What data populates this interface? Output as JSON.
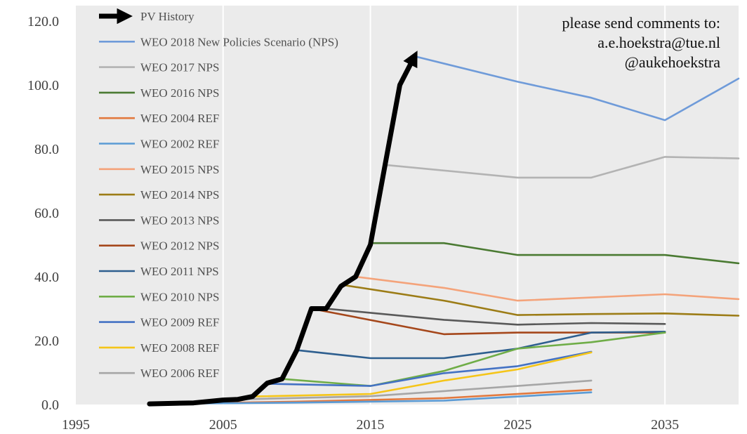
{
  "chart_data": {
    "type": "line",
    "xlim": [
      1995,
      2040
    ],
    "ylim": [
      0,
      120
    ],
    "x_ticks": [
      "1995",
      "2005",
      "2015",
      "2025",
      "2035"
    ],
    "x_tick_values": [
      1995,
      2005,
      2015,
      2025,
      2035
    ],
    "y_ticks": [
      "0.0",
      "20.0",
      "40.0",
      "60.0",
      "80.0",
      "100.0",
      "120.0"
    ],
    "y_tick_values": [
      0,
      20,
      40,
      60,
      80,
      100,
      120
    ],
    "grid": "vertical",
    "background": "#ebebeb",
    "legend_position": "top-left",
    "annotation": [
      "please send comments to:",
      "a.e.hoekstra@tue.nl",
      "@aukehoekstra"
    ],
    "series": [
      {
        "name": "PV History",
        "color": "#000000",
        "style": "arrow",
        "points": [
          [
            2000,
            0.2
          ],
          [
            2003,
            0.5
          ],
          [
            2005,
            1.4
          ],
          [
            2006,
            1.6
          ],
          [
            2007,
            2.5
          ],
          [
            2008,
            6.7
          ],
          [
            2009,
            8
          ],
          [
            2010,
            17
          ],
          [
            2011,
            30
          ],
          [
            2012,
            30
          ],
          [
            2013,
            37
          ],
          [
            2014,
            40
          ],
          [
            2015,
            50
          ],
          [
            2016,
            75
          ],
          [
            2017,
            100
          ],
          [
            2018,
            109
          ]
        ]
      },
      {
        "name": "WEO 2018 New Policies Scenario (NPS)",
        "color": "#6f9bd9",
        "points": [
          [
            2018,
            109
          ],
          [
            2025,
            101
          ],
          [
            2030,
            96
          ],
          [
            2035,
            89
          ],
          [
            2040,
            102
          ]
        ]
      },
      {
        "name": "WEO 2017 NPS",
        "color": "#b3b3b3",
        "points": [
          [
            2016,
            75
          ],
          [
            2025,
            71
          ],
          [
            2030,
            71
          ],
          [
            2035,
            77.5
          ],
          [
            2040,
            77
          ]
        ]
      },
      {
        "name": "WEO 2016 NPS",
        "color": "#4a7a32",
        "points": [
          [
            2015,
            50.5
          ],
          [
            2020,
            50.5
          ],
          [
            2025,
            46.8
          ],
          [
            2030,
            46.8
          ],
          [
            2035,
            46.8
          ],
          [
            2040,
            44.2
          ]
        ]
      },
      {
        "name": "WEO 2004 REF",
        "color": "#e2783d",
        "points": [
          [
            2002,
            0.3
          ],
          [
            2010,
            0.9
          ],
          [
            2020,
            2
          ],
          [
            2030,
            4.6
          ]
        ]
      },
      {
        "name": "WEO 2002 REF",
        "color": "#5b9bd5",
        "points": [
          [
            2000,
            0.2
          ],
          [
            2010,
            0.6
          ],
          [
            2020,
            1.2
          ],
          [
            2030,
            3.8
          ]
        ]
      },
      {
        "name": "WEO 2015 NPS",
        "color": "#f4a37a",
        "points": [
          [
            2014,
            40
          ],
          [
            2020,
            36.5
          ],
          [
            2025,
            32.5
          ],
          [
            2030,
            33.5
          ],
          [
            2035,
            34.5
          ],
          [
            2040,
            33
          ]
        ]
      },
      {
        "name": "WEO 2014 NPS",
        "color": "#9c7c16",
        "points": [
          [
            2013,
            37.5
          ],
          [
            2020,
            32.5
          ],
          [
            2025,
            28
          ],
          [
            2030,
            28.3
          ],
          [
            2035,
            28.5
          ],
          [
            2040,
            27.8
          ]
        ]
      },
      {
        "name": "WEO 2013 NPS",
        "color": "#595959",
        "points": [
          [
            2012,
            30
          ],
          [
            2020,
            26.5
          ],
          [
            2025,
            25
          ],
          [
            2030,
            25.5
          ],
          [
            2035,
            25.2
          ]
        ]
      },
      {
        "name": "WEO 2012 NPS",
        "color": "#a5471b",
        "points": [
          [
            2011,
            30
          ],
          [
            2020,
            22
          ],
          [
            2025,
            22.5
          ],
          [
            2030,
            22.5
          ],
          [
            2035,
            22.5
          ]
        ]
      },
      {
        "name": "WEO 2011 NPS",
        "color": "#2e5f8f",
        "points": [
          [
            2010,
            17
          ],
          [
            2015,
            14.5
          ],
          [
            2020,
            14.5
          ],
          [
            2025,
            17.5
          ],
          [
            2030,
            22.5
          ],
          [
            2035,
            22.8
          ]
        ]
      },
      {
        "name": "WEO 2010 NPS",
        "color": "#6fad47",
        "points": [
          [
            2009,
            8
          ],
          [
            2015,
            5.8
          ],
          [
            2020,
            10.5
          ],
          [
            2025,
            17.5
          ],
          [
            2030,
            19.5
          ],
          [
            2035,
            22.5
          ]
        ]
      },
      {
        "name": "WEO 2009 REF",
        "color": "#4472c4",
        "points": [
          [
            2008,
            6.5
          ],
          [
            2015,
            5.8
          ],
          [
            2020,
            9.8
          ],
          [
            2025,
            12
          ],
          [
            2030,
            16.5
          ]
        ]
      },
      {
        "name": "WEO 2008 REF",
        "color": "#f5c518",
        "points": [
          [
            2007,
            2.5
          ],
          [
            2015,
            3.3
          ],
          [
            2020,
            7.5
          ],
          [
            2025,
            11
          ],
          [
            2030,
            16.3
          ]
        ]
      },
      {
        "name": "WEO 2006 REF",
        "color": "#a6a6a6",
        "points": [
          [
            2005,
            1.5
          ],
          [
            2015,
            2.6
          ],
          [
            2020,
            4.2
          ],
          [
            2025,
            5.8
          ],
          [
            2030,
            7.5
          ]
        ]
      }
    ]
  }
}
